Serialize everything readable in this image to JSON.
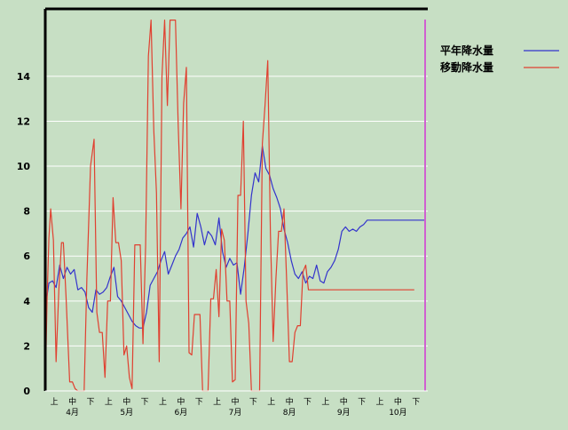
{
  "chart_data": {
    "type": "line",
    "title": "",
    "xlabel": "",
    "ylabel": "",
    "ylim": [
      0,
      17
    ],
    "yticks": [
      0,
      2,
      4,
      6,
      8,
      10,
      12,
      14
    ],
    "grid": "horizontal",
    "legend_position": "top-right",
    "xlim": [
      0,
      21
    ],
    "decade_tick_labels": [
      "上",
      "中",
      "下",
      "上",
      "中",
      "下",
      "上",
      "中",
      "下",
      "上",
      "中",
      "下",
      "上",
      "中",
      "下",
      "上",
      "中",
      "下",
      "上",
      "中",
      "下"
    ],
    "decade_tick_positions": [
      0.5,
      1.5,
      2.5,
      3.5,
      4.5,
      5.5,
      6.5,
      7.5,
      8.5,
      9.5,
      10.5,
      11.5,
      12.5,
      13.5,
      14.5,
      15.5,
      16.5,
      17.5,
      18.5,
      19.5,
      20.5
    ],
    "month_labels": [
      "4月",
      "5月",
      "6月",
      "7月",
      "8月",
      "9月",
      "10月"
    ],
    "month_label_positions": [
      1.5,
      4.5,
      7.5,
      10.5,
      13.5,
      16.5,
      19.5
    ],
    "series": [
      {
        "name": "平年降水量",
        "color": "#3333cc",
        "x": [
          0.0,
          0.2,
          0.4,
          0.6,
          0.8,
          1.0,
          1.2,
          1.4,
          1.6,
          1.8,
          2.0,
          2.2,
          2.4,
          2.6,
          2.8,
          3.0,
          3.2,
          3.4,
          3.6,
          3.8,
          4.0,
          4.2,
          4.4,
          4.6,
          4.8,
          5.0,
          5.2,
          5.4,
          5.6,
          5.8,
          6.0,
          6.2,
          6.4,
          6.6,
          6.8,
          7.0,
          7.2,
          7.4,
          7.6,
          7.8,
          8.0,
          8.2,
          8.4,
          8.6,
          8.8,
          9.0,
          9.2,
          9.4,
          9.6,
          9.8,
          10.0,
          10.2,
          10.4,
          10.6,
          10.8,
          11.0,
          11.2,
          11.4,
          11.6,
          11.8,
          12.0,
          12.2,
          12.4,
          12.6,
          12.8,
          13.0,
          13.2,
          13.4,
          13.6,
          13.8,
          14.0,
          14.2,
          14.4,
          14.6,
          14.8,
          15.0,
          15.2,
          15.4,
          15.6,
          15.8,
          16.0,
          16.2,
          16.4,
          16.6,
          16.8,
          17.0,
          17.2,
          17.4,
          17.6,
          17.8,
          18.0,
          18.2,
          18.4,
          18.6,
          18.8,
          19.0,
          19.2,
          19.4,
          19.6,
          19.8,
          20.0,
          20.2,
          20.4,
          20.6,
          20.8,
          21.0
        ],
        "values": [
          3.7,
          4.8,
          4.9,
          4.6,
          5.6,
          5.0,
          5.5,
          5.2,
          5.4,
          4.5,
          4.6,
          4.4,
          3.7,
          3.5,
          4.5,
          4.3,
          4.4,
          4.6,
          5.1,
          5.5,
          4.2,
          4.0,
          3.7,
          3.4,
          3.1,
          2.9,
          2.8,
          2.8,
          3.5,
          4.7,
          5.0,
          5.3,
          5.8,
          6.2,
          5.2,
          5.6,
          6.0,
          6.3,
          6.8,
          7.0,
          7.3,
          6.4,
          7.9,
          7.3,
          6.5,
          7.1,
          6.9,
          6.5,
          7.7,
          6.2,
          5.5,
          5.9,
          5.6,
          5.7,
          4.3,
          5.5,
          7.0,
          8.7,
          9.7,
          9.3,
          10.9,
          9.9,
          9.6,
          9.0,
          8.6,
          8.1,
          7.2,
          6.6,
          5.8,
          5.2,
          5.0,
          5.3,
          4.8,
          5.1,
          5.0,
          5.6,
          4.9,
          4.8,
          5.3,
          5.5,
          5.8,
          6.3,
          7.1,
          7.3,
          7.1,
          7.2,
          7.1,
          7.3,
          7.4,
          7.6,
          7.6,
          7.6,
          7.6,
          7.6,
          7.6,
          7.6,
          7.6,
          7.6,
          7.6,
          7.6,
          7.6,
          7.6,
          7.6,
          7.6,
          7.6,
          7.6
        ]
      },
      {
        "name": "移動降水量",
        "color": "#e04030",
        "x": [
          0.0,
          0.1,
          0.2,
          0.3,
          0.45,
          0.6,
          0.75,
          0.9,
          1.0,
          1.15,
          1.35,
          1.5,
          1.65,
          1.8,
          2.0,
          2.15,
          2.3,
          2.5,
          2.7,
          2.85,
          3.0,
          3.15,
          3.3,
          3.45,
          3.6,
          3.75,
          3.9,
          4.05,
          4.2,
          4.35,
          4.5,
          4.65,
          4.8,
          4.95,
          5.1,
          5.25,
          5.4,
          5.55,
          5.7,
          5.85,
          6.0,
          6.15,
          6.3,
          6.45,
          6.6,
          6.75,
          6.9,
          7.05,
          7.2,
          7.35,
          7.5,
          7.65,
          7.8,
          7.95,
          8.1,
          8.25,
          8.4,
          8.55,
          8.7,
          8.85,
          9.0,
          9.15,
          9.3,
          9.45,
          9.6,
          9.75,
          9.9,
          10.05,
          10.2,
          10.35,
          10.5,
          10.65,
          10.8,
          10.95,
          11.1,
          11.25,
          11.4,
          11.55,
          11.7,
          11.85,
          12.0,
          12.15,
          12.3,
          12.45,
          12.6,
          12.75,
          12.9,
          13.05,
          13.2,
          13.35,
          13.5,
          13.65,
          13.8,
          13.95,
          14.1,
          14.25,
          14.4,
          14.55,
          14.7,
          14.85,
          15.0,
          15.15,
          15.3,
          15.45,
          15.6,
          15.75,
          15.9,
          16.05,
          16.2,
          16.35,
          16.5,
          16.65,
          16.8,
          16.95,
          17.1,
          17.25,
          17.4,
          17.55,
          17.7,
          17.85,
          18.0,
          18.15,
          18.3,
          18.45,
          18.6,
          18.75,
          18.9,
          19.05,
          19.2,
          19.35,
          19.5,
          19.65,
          19.8,
          19.95,
          20.1,
          20.25,
          20.4
        ],
        "values": [
          0.0,
          4.0,
          6.8,
          8.1,
          6.7,
          1.3,
          4.5,
          6.6,
          6.6,
          4.2,
          0.4,
          0.4,
          0.1,
          0.0,
          0.0,
          0.0,
          5.0,
          10.0,
          11.2,
          3.5,
          2.6,
          2.6,
          0.6,
          4.0,
          4.0,
          8.6,
          6.6,
          6.6,
          5.8,
          1.6,
          2.0,
          0.6,
          0.1,
          6.5,
          6.5,
          6.5,
          2.1,
          6.5,
          14.9,
          16.5,
          11.6,
          8.8,
          1.3,
          14.0,
          16.5,
          12.7,
          16.5,
          16.5,
          16.5,
          11.8,
          8.1,
          12.8,
          14.4,
          1.7,
          1.6,
          3.4,
          3.4,
          3.4,
          0.0,
          0.0,
          0.0,
          4.1,
          4.1,
          5.4,
          3.3,
          7.2,
          6.7,
          4.0,
          4.0,
          0.4,
          0.5,
          8.7,
          8.7,
          12.0,
          4.0,
          3.0,
          0.0,
          0.0,
          0.0,
          0.0,
          11.0,
          12.7,
          14.7,
          7.0,
          2.2,
          5.0,
          7.1,
          7.1,
          8.1,
          4.8,
          1.3,
          1.3,
          2.6,
          2.9,
          2.9,
          5.3,
          5.6,
          4.5,
          4.5,
          4.5,
          4.5,
          4.5,
          4.5,
          4.5,
          4.5,
          4.5,
          4.5,
          4.5,
          4.5,
          4.5,
          4.5,
          4.5,
          4.5,
          4.5,
          4.5,
          4.5,
          4.5,
          4.5,
          4.5,
          4.5,
          4.5,
          4.5,
          4.5,
          4.5,
          4.5,
          4.5,
          4.5,
          4.5,
          4.5,
          4.5,
          4.5,
          4.5,
          4.5,
          4.5,
          4.5,
          4.5,
          4.5
        ]
      }
    ],
    "current_marker": {
      "x": 21.0,
      "color": "#d060d0"
    }
  }
}
